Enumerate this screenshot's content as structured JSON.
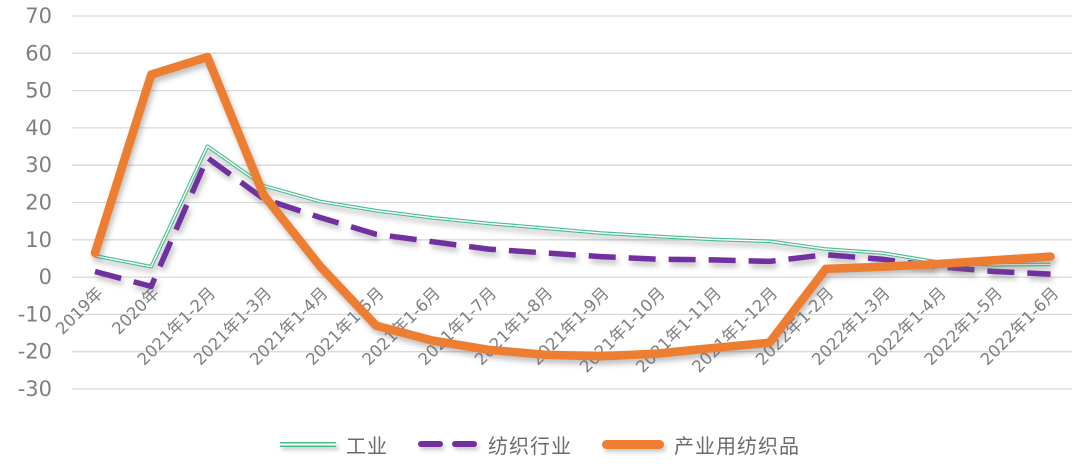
{
  "chart_data": {
    "type": "line",
    "title": "",
    "categories": [
      "2019年",
      "2020年",
      "2021年1-2月",
      "2021年1-3月",
      "2021年1-4月",
      "2021年1-5月",
      "2021年1-6月",
      "2021年1-7月",
      "2021年1-8月",
      "2021年1-9月",
      "2021年1-10月",
      "2021年1-11月",
      "2021年1-12月",
      "2022年1-2月",
      "2022年1-3月",
      "2022年1-4月",
      "2022年1-5月",
      "2022年1-6月"
    ],
    "series": [
      {
        "name": "工业",
        "key": "industry",
        "style": "thin-double-line",
        "color": "#46be8c",
        "values": [
          5.7,
          2.8,
          35.1,
          24.5,
          20.3,
          17.8,
          15.9,
          14.4,
          13.1,
          11.8,
          10.9,
          10.1,
          9.6,
          7.5,
          6.5,
          4.0,
          3.3,
          3.4
        ]
      },
      {
        "name": "纺织行业",
        "key": "textile-industry",
        "style": "dashed",
        "color": "#7030a0",
        "values": [
          1.5,
          -2.5,
          32.0,
          21.0,
          16.0,
          11.5,
          9.5,
          7.5,
          6.5,
          5.5,
          4.8,
          4.6,
          4.2,
          6.0,
          4.8,
          2.8,
          1.5,
          0.8
        ]
      },
      {
        "name": "产业用纺织品",
        "key": "industrial-textiles",
        "style": "thick-solid",
        "color": "#ed7d31",
        "values": [
          6.5,
          54.3,
          59.0,
          22.0,
          3.0,
          -13.0,
          -17.0,
          -19.5,
          -20.8,
          -21.2,
          -20.5,
          -19.0,
          -17.6,
          2.2,
          2.8,
          3.5,
          4.5,
          5.5
        ]
      }
    ],
    "xlabel": "",
    "ylabel": "",
    "y_axis": {
      "min": -30,
      "max": 70,
      "step": 10,
      "tick_labels": [
        "70",
        "60",
        "50",
        "40",
        "30",
        "20",
        "10",
        "0",
        "-10",
        "-20",
        "-30"
      ]
    },
    "grid": true,
    "legend_position": "bottom"
  },
  "colors": {
    "gridline": "#d9d9d9",
    "axis_text": "#7f7f7f",
    "legend_text": "#6b6b6b",
    "background": "#ffffff",
    "industry": "#46be8c",
    "textile_industry": "#7030a0",
    "industrial_textiles": "#ed7d31"
  }
}
